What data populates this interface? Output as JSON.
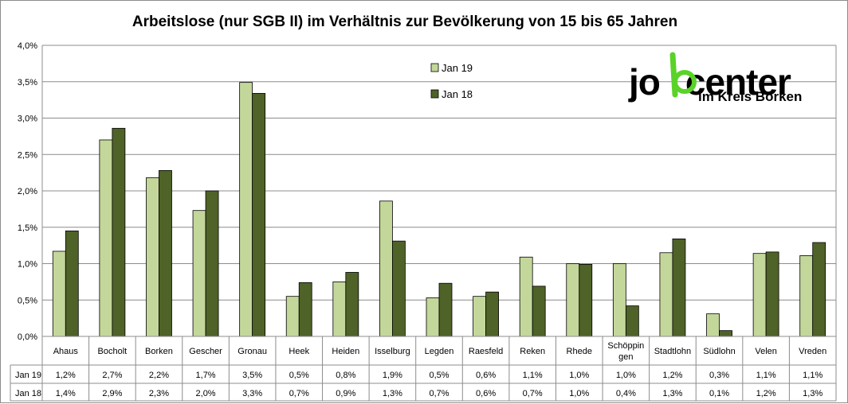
{
  "chart_data": {
    "type": "bar",
    "title": "Arbeitslose (nur SGB II) im Verhältnis zur Bevölkerung von 15 bis 65 Jahren",
    "categories": [
      "Ahaus",
      "Bocholt",
      "Borken",
      "Gescher",
      "Gronau",
      "Heek",
      "Heiden",
      "Isselburg",
      "Legden",
      "Raesfeld",
      "Reken",
      "Rhede",
      "Schöppin-gen",
      "Stadtlohn",
      "Südlohn",
      "Velen",
      "Vreden"
    ],
    "category_lines": [
      [
        "Ahaus"
      ],
      [
        "Bocholt"
      ],
      [
        "Borken"
      ],
      [
        "Gescher"
      ],
      [
        "Gronau"
      ],
      [
        "Heek"
      ],
      [
        "Heiden"
      ],
      [
        "Isselburg"
      ],
      [
        "Legden"
      ],
      [
        "Raesfeld"
      ],
      [
        "Reken"
      ],
      [
        "Rhede"
      ],
      [
        "Schöppin",
        "gen"
      ],
      [
        "Stadtlohn"
      ],
      [
        "Südlohn"
      ],
      [
        "Velen"
      ],
      [
        "Vreden"
      ]
    ],
    "series": [
      {
        "name": "Jan 19",
        "color": "#c4d79b",
        "values": [
          1.17,
          2.7,
          2.18,
          1.73,
          3.49,
          0.55,
          0.75,
          1.86,
          0.53,
          0.55,
          1.09,
          1.0,
          1.0,
          1.15,
          0.31,
          1.14,
          1.11
        ],
        "labels": [
          "1,2%",
          "2,7%",
          "2,2%",
          "1,7%",
          "3,5%",
          "0,5%",
          "0,8%",
          "1,9%",
          "0,5%",
          "0,6%",
          "1,1%",
          "1,0%",
          "1,0%",
          "1,2%",
          "0,3%",
          "1,1%",
          "1,1%"
        ]
      },
      {
        "name": "Jan 18",
        "color": "#4f6228",
        "values": [
          1.45,
          2.86,
          2.28,
          2.0,
          3.34,
          0.74,
          0.88,
          1.31,
          0.73,
          0.61,
          0.69,
          0.99,
          0.42,
          1.34,
          0.08,
          1.16,
          1.29
        ],
        "labels": [
          "1,4%",
          "2,9%",
          "2,3%",
          "2,0%",
          "3,3%",
          "0,7%",
          "0,9%",
          "1,3%",
          "0,7%",
          "0,6%",
          "0,7%",
          "1,0%",
          "0,4%",
          "1,3%",
          "0,1%",
          "1,2%",
          "1,3%"
        ]
      }
    ],
    "ylim": [
      0,
      4.0
    ],
    "yticks": [
      0,
      0.5,
      1.0,
      1.5,
      2.0,
      2.5,
      3.0,
      3.5,
      4.0
    ],
    "ytick_labels": [
      "0,0%",
      "0,5%",
      "1,0%",
      "1,5%",
      "2,0%",
      "2,5%",
      "3,0%",
      "3,5%",
      "4,0%"
    ],
    "grid": true,
    "legend_position": "top-center",
    "data_table": true
  },
  "logo": {
    "text_main": "jobcenter",
    "text_prefix": "jo",
    "text_suffix": "center",
    "text_sub": "im Kreis Borken",
    "accent_color": "#5ad22a"
  }
}
